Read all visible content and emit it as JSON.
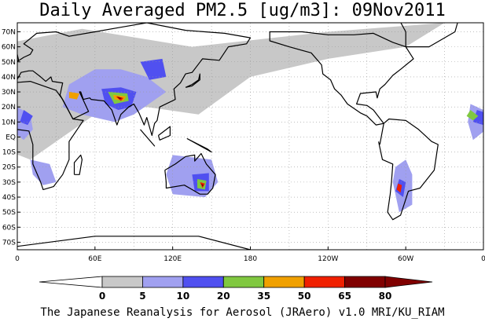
{
  "title": "Daily Averaged PM2.5 [ug/m3]: 09Nov2011",
  "credit": "The Japanese Reanalysis for Aerosol (JRAero) v1.0 MRI/KU_RIAM",
  "map": {
    "lat_labels": [
      "70N",
      "60N",
      "50N",
      "40N",
      "30N",
      "20N",
      "10N",
      "EQ",
      "10S",
      "20S",
      "30S",
      "40S",
      "50S",
      "60S",
      "70S"
    ],
    "lon_labels": [
      "0",
      "60E",
      "120E",
      "180",
      "120W",
      "60W",
      "0"
    ],
    "gridlines": true,
    "ocean_color": "#ffffff",
    "coastline_color": "#000000"
  },
  "colorbar": {
    "ticks": [
      "0",
      "5",
      "10",
      "20",
      "35",
      "50",
      "65",
      "80"
    ],
    "colors": [
      "#ffffff",
      "#c8c8c8",
      "#a0a0f0",
      "#5050f0",
      "#80c840",
      "#f0a000",
      "#f02000",
      "#800000"
    ],
    "under_color": "#ffffff",
    "over_color": "#800000"
  },
  "regions": [
    {
      "level": 1,
      "pts": [
        [
          330,
          76
        ],
        [
          240,
          70
        ],
        [
          135,
          60
        ],
        [
          50,
          72
        ],
        [
          -10,
          62
        ],
        [
          -20,
          50
        ],
        [
          -30,
          40
        ],
        [
          -40,
          25
        ],
        [
          -20,
          -5
        ],
        [
          10,
          -15
        ],
        [
          60,
          15
        ],
        [
          100,
          20
        ],
        [
          140,
          15
        ],
        [
          180,
          40
        ],
        [
          240,
          52
        ],
        [
          300,
          60
        ]
      ]
    },
    {
      "level": 2,
      "pts": [
        [
          40,
          35
        ],
        [
          60,
          45
        ],
        [
          80,
          45
        ],
        [
          100,
          40
        ],
        [
          115,
          30
        ],
        [
          90,
          15
        ],
        [
          75,
          10
        ],
        [
          50,
          15
        ],
        [
          35,
          20
        ]
      ]
    },
    {
      "level": 2,
      "pts": [
        [
          350,
          22
        ],
        [
          360,
          18
        ],
        [
          362,
          5
        ],
        [
          352,
          -2
        ],
        [
          348,
          10
        ]
      ]
    },
    {
      "level": 2,
      "pts": [
        [
          0,
          20
        ],
        [
          10,
          15
        ],
        [
          12,
          5
        ],
        [
          5,
          -2
        ],
        [
          -5,
          5
        ],
        [
          -5,
          15
        ]
      ]
    },
    {
      "level": 2,
      "pts": [
        [
          120,
          -12
        ],
        [
          150,
          -15
        ],
        [
          155,
          -30
        ],
        [
          145,
          -40
        ],
        [
          120,
          -38
        ],
        [
          115,
          -25
        ]
      ]
    },
    {
      "level": 2,
      "pts": [
        [
          300,
          -15
        ],
        [
          305,
          -25
        ],
        [
          305,
          -45
        ],
        [
          295,
          -50
        ],
        [
          290,
          -30
        ],
        [
          292,
          -20
        ]
      ]
    },
    {
      "level": 2,
      "pts": [
        [
          10,
          -15
        ],
        [
          25,
          -18
        ],
        [
          30,
          -30
        ],
        [
          20,
          -32
        ],
        [
          12,
          -25
        ]
      ]
    },
    {
      "level": 3,
      "pts": [
        [
          65,
          32
        ],
        [
          80,
          33
        ],
        [
          92,
          30
        ],
        [
          88,
          20
        ],
        [
          78,
          18
        ],
        [
          68,
          22
        ]
      ]
    },
    {
      "level": 3,
      "pts": [
        [
          135,
          -25
        ],
        [
          148,
          -24
        ],
        [
          148,
          -36
        ],
        [
          137,
          -36
        ]
      ]
    },
    {
      "level": 3,
      "pts": [
        [
          295,
          -28
        ],
        [
          300,
          -30
        ],
        [
          298,
          -40
        ],
        [
          292,
          -36
        ]
      ]
    },
    {
      "level": 3,
      "pts": [
        [
          95,
          50
        ],
        [
          112,
          52
        ],
        [
          115,
          40
        ],
        [
          102,
          38
        ]
      ]
    },
    {
      "level": 3,
      "pts": [
        [
          355,
          18
        ],
        [
          362,
          16
        ],
        [
          360,
          8
        ],
        [
          352,
          10
        ]
      ]
    },
    {
      "level": 3,
      "pts": [
        [
          5,
          18
        ],
        [
          12,
          14
        ],
        [
          8,
          8
        ],
        [
          2,
          10
        ]
      ]
    },
    {
      "level": 4,
      "pts": [
        [
          70,
          30
        ],
        [
          85,
          29
        ],
        [
          86,
          24
        ],
        [
          75,
          22
        ]
      ]
    },
    {
      "level": 4,
      "pts": [
        [
          350,
          18
        ],
        [
          356,
          14
        ],
        [
          352,
          11
        ],
        [
          347,
          14
        ]
      ]
    },
    {
      "level": 4,
      "pts": [
        [
          139,
          -28
        ],
        [
          146,
          -29
        ],
        [
          145,
          -35
        ],
        [
          139,
          -34
        ]
      ]
    },
    {
      "level": 5,
      "pts": [
        [
          74,
          28
        ],
        [
          84,
          27
        ],
        [
          82,
          24
        ],
        [
          75,
          25
        ]
      ]
    },
    {
      "level": 5,
      "pts": [
        [
          40,
          30
        ],
        [
          48,
          29
        ],
        [
          46,
          25
        ],
        [
          40,
          26
        ]
      ]
    },
    {
      "level": 6,
      "pts": [
        [
          76,
          27
        ],
        [
          82,
          26
        ],
        [
          80,
          24
        ]
      ]
    },
    {
      "level": 6,
      "pts": [
        [
          141,
          -30
        ],
        [
          145,
          -31
        ],
        [
          143,
          -34
        ]
      ]
    },
    {
      "level": 6,
      "pts": [
        [
          294,
          -31
        ],
        [
          297,
          -32
        ],
        [
          296,
          -37
        ],
        [
          293,
          -35
        ]
      ]
    },
    {
      "level": 7,
      "pts": [
        [
          77,
          27
        ],
        [
          81,
          26
        ],
        [
          79,
          25
        ]
      ]
    },
    {
      "level": 7,
      "pts": [
        [
          142,
          -31
        ],
        [
          144,
          -32
        ],
        [
          143,
          -33
        ]
      ]
    }
  ],
  "coastlines": [
    [
      [
        -17,
        14
      ],
      [
        -17,
        21
      ],
      [
        -10,
        30
      ],
      [
        -5,
        36
      ],
      [
        10,
        37
      ],
      [
        30,
        31
      ],
      [
        35,
        25
      ],
      [
        43,
        12
      ],
      [
        51,
        11
      ],
      [
        40,
        -3
      ],
      [
        40,
        -15
      ],
      [
        35,
        -25
      ],
      [
        28,
        -33
      ],
      [
        20,
        -35
      ],
      [
        18,
        -30
      ],
      [
        12,
        -18
      ],
      [
        12,
        -5
      ],
      [
        9,
        4
      ],
      [
        0,
        5
      ],
      [
        -8,
        4
      ],
      [
        -13,
        8
      ],
      [
        -17,
        14
      ]
    ],
    [
      [
        -10,
        36
      ],
      [
        -5,
        43
      ],
      [
        -1,
        46
      ],
      [
        -4,
        48
      ],
      [
        5,
        53
      ],
      [
        10,
        55
      ],
      [
        12,
        58
      ],
      [
        5,
        62
      ],
      [
        15,
        69
      ],
      [
        30,
        70
      ],
      [
        40,
        67
      ],
      [
        60,
        70
      ],
      [
        80,
        73
      ],
      [
        100,
        76
      ],
      [
        130,
        71
      ],
      [
        160,
        69
      ],
      [
        180,
        66
      ],
      [
        177,
        62
      ],
      [
        163,
        60
      ],
      [
        156,
        51
      ],
      [
        143,
        52
      ],
      [
        135,
        43
      ],
      [
        130,
        42
      ],
      [
        126,
        36
      ],
      [
        121,
        32
      ],
      [
        122,
        25
      ],
      [
        110,
        20
      ],
      [
        108,
        11
      ],
      [
        106,
        9
      ],
      [
        104,
        1
      ],
      [
        100,
        13
      ],
      [
        98,
        8
      ],
      [
        94,
        16
      ],
      [
        90,
        22
      ],
      [
        86,
        20
      ],
      [
        80,
        15
      ],
      [
        77,
        8
      ],
      [
        73,
        18
      ],
      [
        67,
        24
      ],
      [
        57,
        25
      ],
      [
        56,
        26
      ],
      [
        51,
        25
      ],
      [
        49,
        30
      ],
      [
        48,
        30
      ],
      [
        55,
        17
      ],
      [
        43,
        12
      ],
      [
        33,
        28
      ],
      [
        35,
        36
      ],
      [
        27,
        37
      ],
      [
        26,
        40
      ],
      [
        22,
        37
      ],
      [
        18,
        40
      ],
      [
        12,
        44
      ],
      [
        9,
        44
      ],
      [
        3,
        43
      ],
      [
        -1,
        37
      ],
      [
        -10,
        36
      ]
    ],
    [
      [
        114,
        -22
      ],
      [
        122,
        -18
      ],
      [
        130,
        -13
      ],
      [
        137,
        -12
      ],
      [
        137,
        -16
      ],
      [
        142,
        -11
      ],
      [
        146,
        -18
      ],
      [
        153,
        -25
      ],
      [
        151,
        -34
      ],
      [
        147,
        -38
      ],
      [
        141,
        -38
      ],
      [
        135,
        -35
      ],
      [
        129,
        -32
      ],
      [
        115,
        -34
      ],
      [
        115,
        -30
      ],
      [
        114,
        -22
      ]
    ],
    [
      [
        280,
        -5
      ],
      [
        283,
        9
      ],
      [
        287,
        12
      ],
      [
        300,
        11
      ],
      [
        310,
        5
      ],
      [
        320,
        -3
      ],
      [
        325,
        -5
      ],
      [
        322,
        -22
      ],
      [
        311,
        -34
      ],
      [
        302,
        -36
      ],
      [
        296,
        -52
      ],
      [
        290,
        -55
      ],
      [
        286,
        -50
      ],
      [
        288,
        -38
      ],
      [
        289,
        -30
      ],
      [
        290,
        -18
      ],
      [
        282,
        -15
      ],
      [
        279,
        -3
      ]
    ],
    [
      [
        283,
        9
      ],
      [
        277,
        8
      ],
      [
        270,
        14
      ],
      [
        265,
        16
      ],
      [
        255,
        22
      ],
      [
        250,
        28
      ],
      [
        245,
        32
      ],
      [
        242,
        38
      ],
      [
        236,
        42
      ],
      [
        235,
        48
      ],
      [
        227,
        56
      ],
      [
        210,
        60
      ],
      [
        195,
        64
      ],
      [
        195,
        70
      ],
      [
        220,
        70
      ],
      [
        240,
        68
      ],
      [
        260,
        68
      ],
      [
        275,
        69
      ],
      [
        290,
        63
      ],
      [
        300,
        60
      ],
      [
        306,
        52
      ],
      [
        296,
        45
      ],
      [
        290,
        41
      ],
      [
        284,
        35
      ],
      [
        280,
        32
      ],
      [
        278,
        26
      ],
      [
        277,
        30
      ],
      [
        265,
        29
      ],
      [
        262,
        22
      ],
      [
        270,
        21
      ],
      [
        275,
        18
      ],
      [
        283,
        9
      ]
    ],
    [
      [
        300,
        60
      ],
      [
        318,
        60
      ],
      [
        338,
        70
      ],
      [
        340,
        76
      ],
      [
        320,
        80
      ],
      [
        295,
        78
      ],
      [
        300,
        70
      ],
      [
        300,
        60
      ]
    ],
    [
      [
        130,
        33
      ],
      [
        135,
        34
      ],
      [
        141,
        38
      ],
      [
        141,
        42
      ],
      [
        140,
        38
      ],
      [
        135,
        35
      ],
      [
        130,
        33
      ]
    ],
    [
      [
        -6,
        50
      ],
      [
        1,
        51
      ],
      [
        0,
        55
      ],
      [
        -3,
        58
      ],
      [
        -5,
        58
      ],
      [
        -4,
        54
      ],
      [
        -6,
        50
      ]
    ],
    [
      [
        44,
        -25
      ],
      [
        48,
        -25
      ],
      [
        50,
        -15
      ],
      [
        49,
        -12
      ],
      [
        44,
        -17
      ],
      [
        44,
        -25
      ]
    ],
    [
      [
        95,
        5
      ],
      [
        106,
        -6
      ],
      [
        98,
        2
      ],
      [
        95,
        5
      ]
    ],
    [
      [
        109,
        1
      ],
      [
        118,
        7
      ],
      [
        118,
        1
      ],
      [
        110,
        -2
      ],
      [
        109,
        1
      ]
    ],
    [
      [
        131,
        -1
      ],
      [
        150,
        -10
      ],
      [
        147,
        -8
      ],
      [
        131,
        -1
      ]
    ],
    [
      [
        -68,
        -60
      ],
      [
        -20,
        -75
      ],
      [
        60,
        -66
      ],
      [
        140,
        -66
      ],
      [
        180,
        -75
      ]
    ]
  ]
}
